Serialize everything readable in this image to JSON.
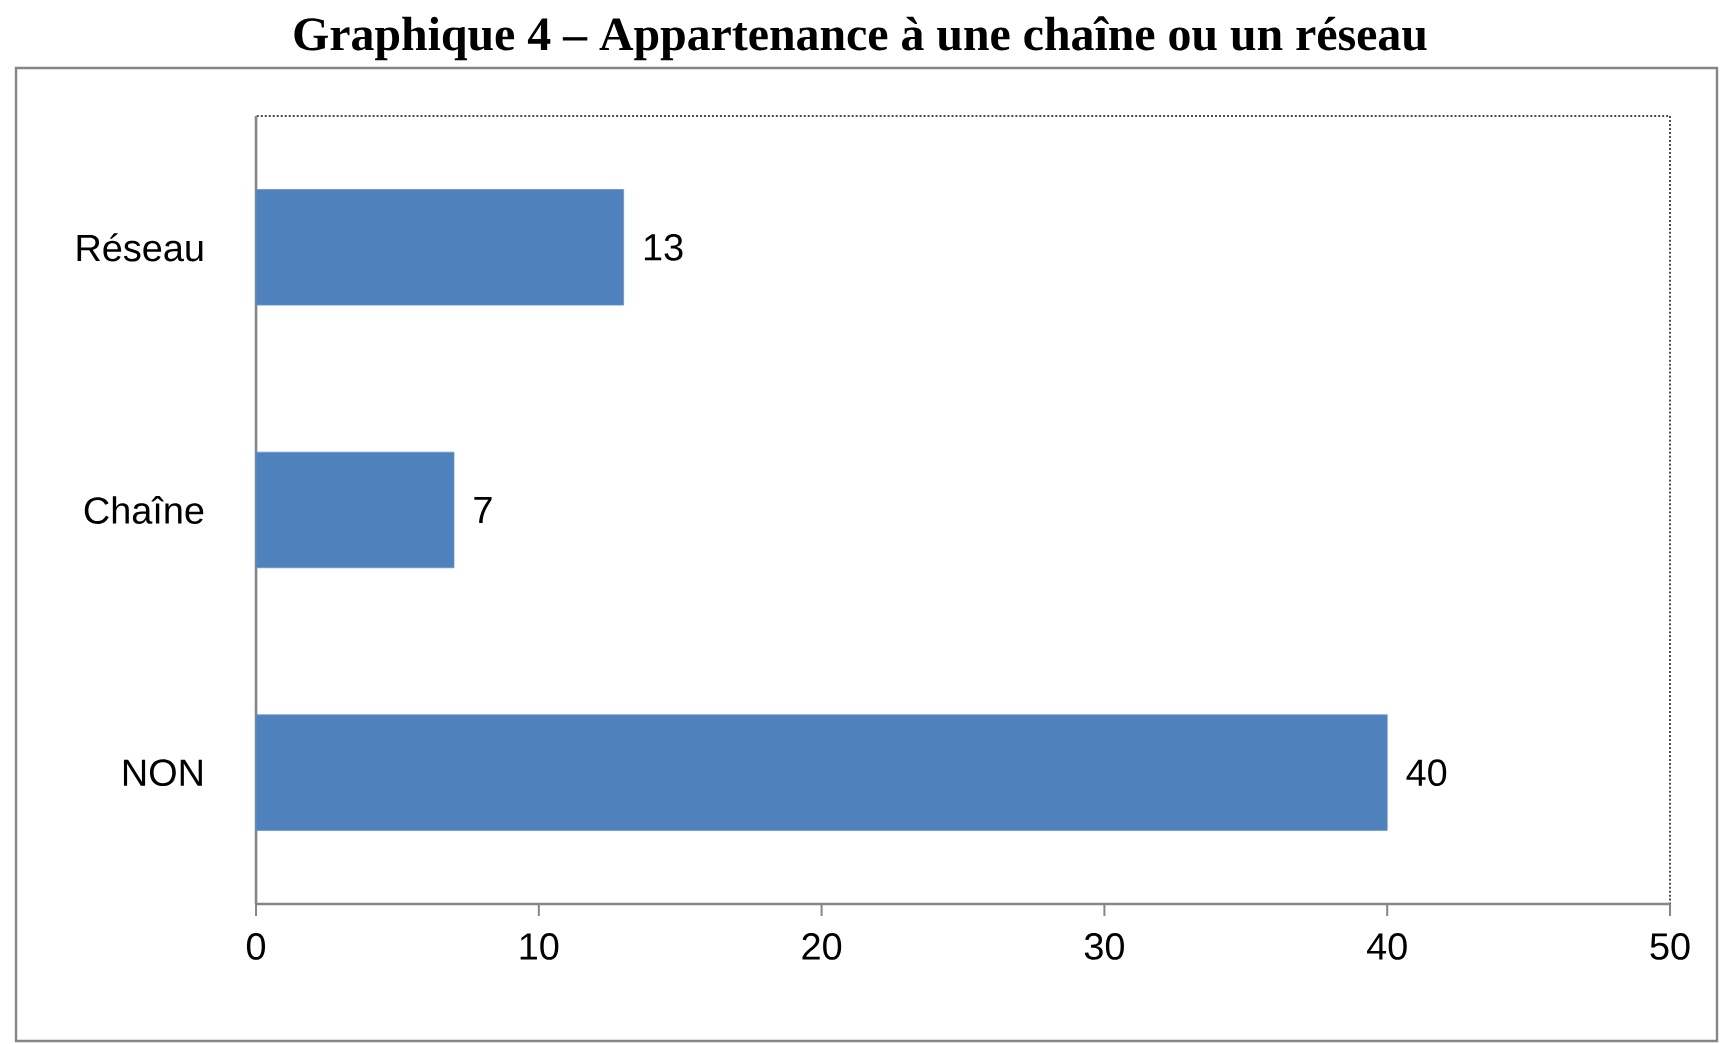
{
  "chart_data": {
    "type": "bar",
    "orientation": "horizontal",
    "title": "Graphique 4 – Appartenance à une chaîne ou un réseau",
    "categories": [
      "Réseau",
      "Chaîne",
      "NON"
    ],
    "values": [
      13,
      7,
      40
    ],
    "color": "#4f81bd",
    "xlim": [
      0,
      50
    ],
    "xticks": [
      0,
      10,
      20,
      30,
      40,
      50
    ],
    "data_labels": true
  }
}
